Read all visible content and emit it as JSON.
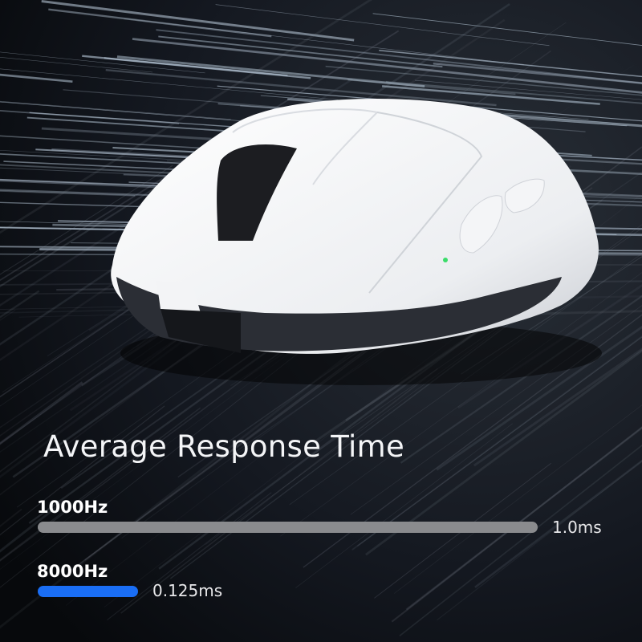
{
  "colors": {
    "bar_1000hz": "#8a8b8e",
    "bar_8000hz": "#1a6ef5",
    "text": "#ffffff"
  },
  "chart_data": {
    "type": "bar",
    "orientation": "horizontal",
    "title": "Average Response Time",
    "categories": [
      "1000Hz",
      "8000Hz"
    ],
    "values": [
      1.0,
      0.125
    ],
    "value_labels": [
      "1.0ms",
      "0.125ms"
    ],
    "unit": "ms",
    "grid": false
  }
}
